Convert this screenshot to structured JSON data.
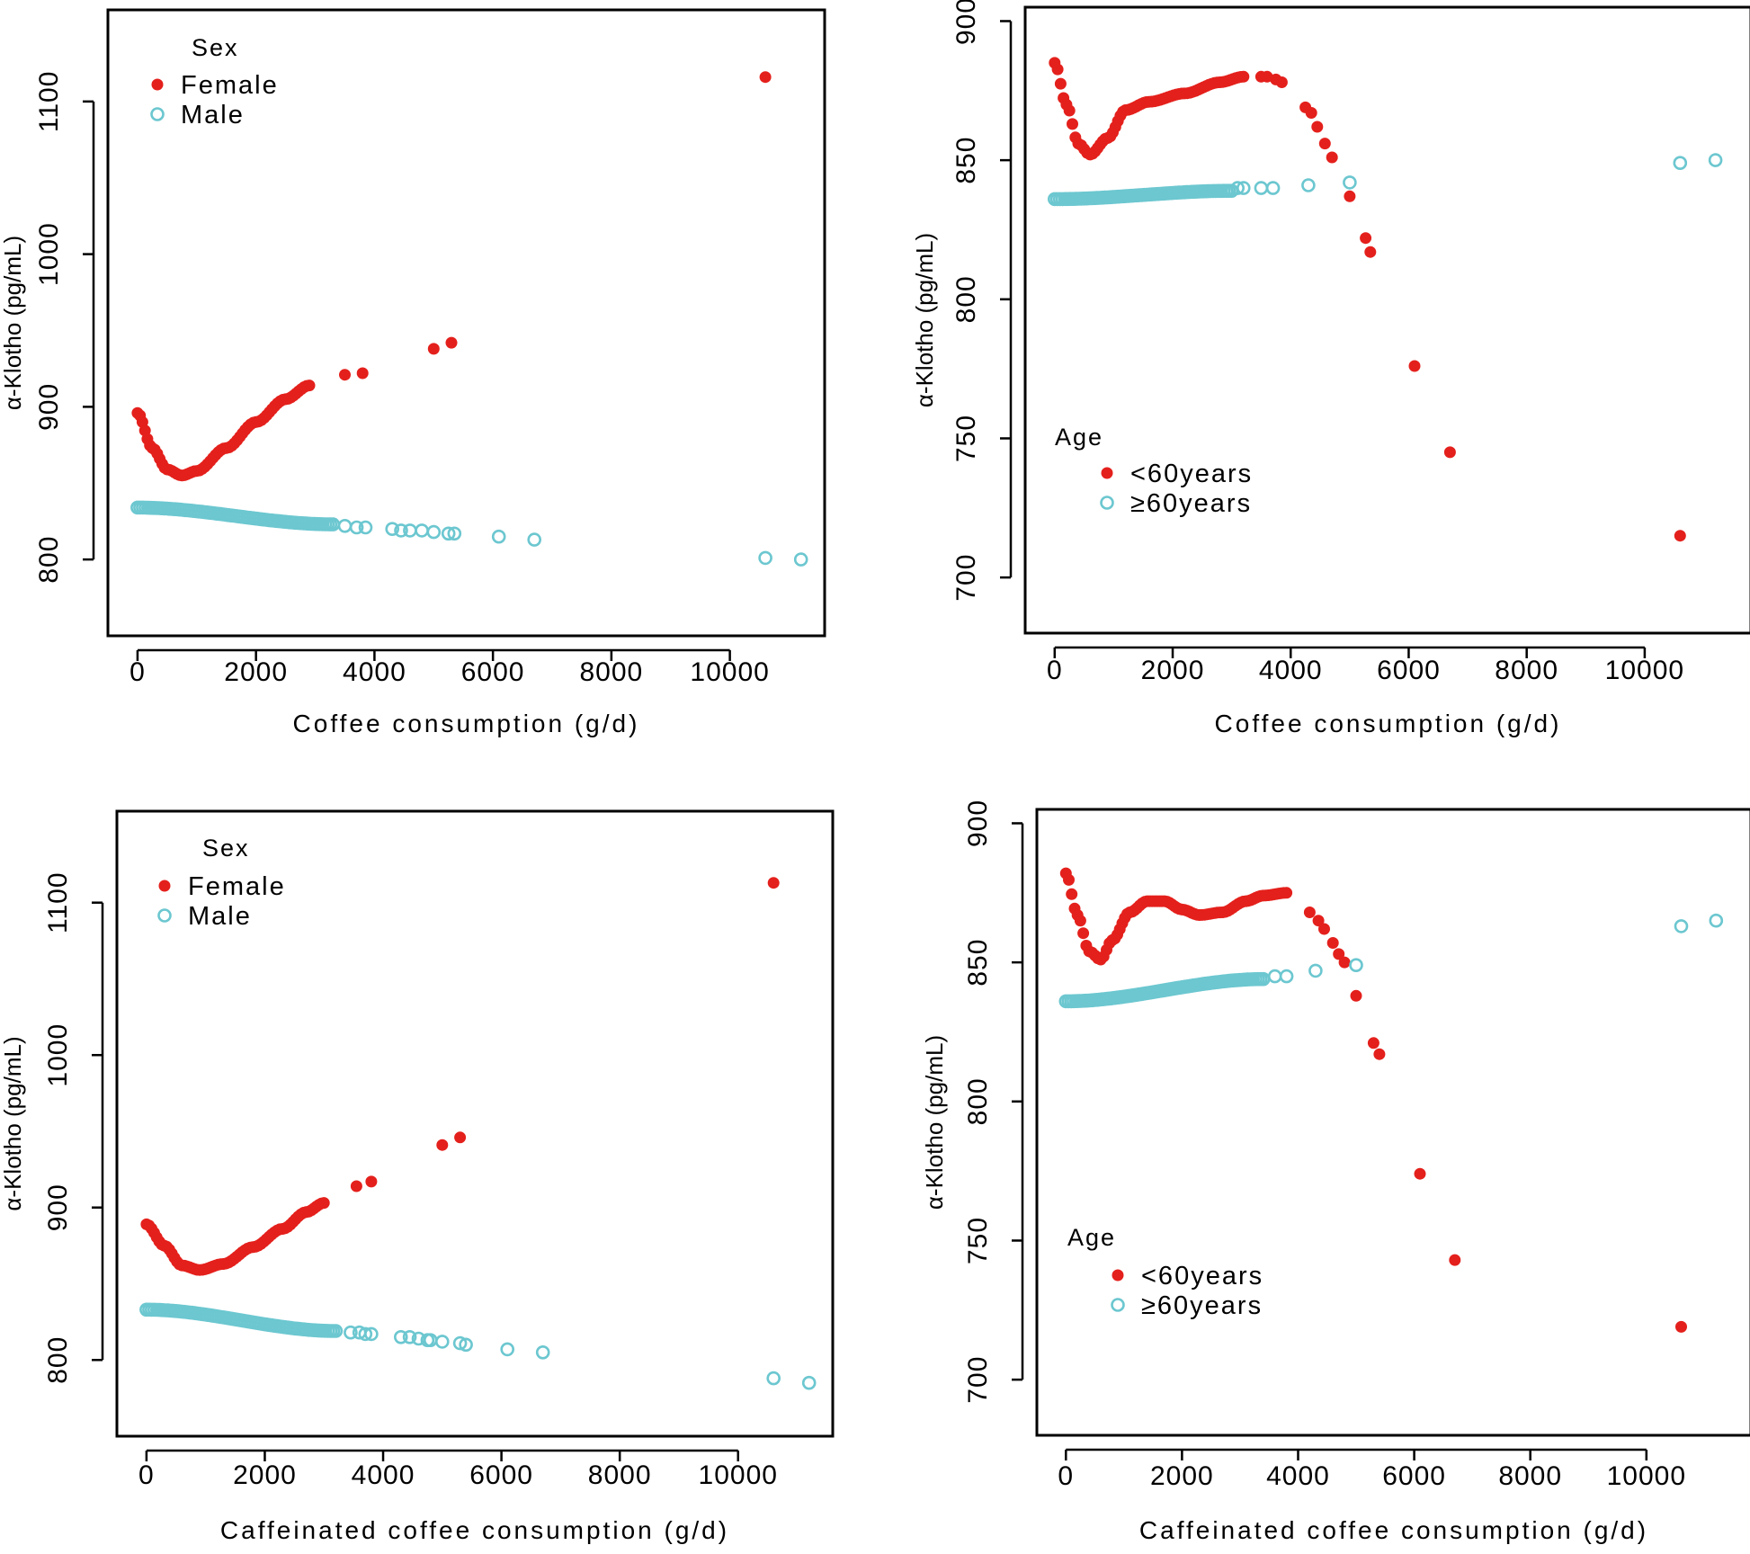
{
  "colors": {
    "female_or_under60": "#E4201C",
    "male_or_over60": "#6CC7D0",
    "axis": "#000000",
    "background": "#FFFFFF"
  },
  "chart_data": [
    {
      "type": "scatter",
      "xlabel": "Coffee consumption (g/d)",
      "ylabel": "α-Klotho (pg/mL)",
      "xlim": [
        -500,
        11600
      ],
      "ylim": [
        750,
        1160
      ],
      "xticks": [
        0,
        2000,
        4000,
        6000,
        8000,
        10000
      ],
      "yticks": [
        800,
        900,
        1000,
        1100
      ],
      "grid": false,
      "legend_title": "Sex",
      "legend_position": "top-left",
      "series": [
        {
          "name": "Female",
          "marker": "filled",
          "curve": [
            [
              0,
              896
            ],
            [
              250,
              873
            ],
            [
              500,
              859
            ],
            [
              750,
              855
            ],
            [
              1000,
              858
            ],
            [
              1500,
              873
            ],
            [
              2000,
              890
            ],
            [
              2500,
              905
            ],
            [
              2900,
              914
            ]
          ],
          "points": [
            [
              3500,
              921
            ],
            [
              3800,
              922
            ],
            [
              5000,
              938
            ],
            [
              5300,
              942
            ],
            [
              10600,
              1116
            ]
          ]
        },
        {
          "name": "Male",
          "marker": "open",
          "curve": [
            [
              0,
              834
            ],
            [
              3300,
              823
            ]
          ],
          "points": [
            [
              3500,
              822
            ],
            [
              3700,
              821
            ],
            [
              3850,
              821
            ],
            [
              4300,
              820
            ],
            [
              4450,
              819
            ],
            [
              4600,
              819
            ],
            [
              4800,
              819
            ],
            [
              5000,
              818
            ],
            [
              5250,
              817
            ],
            [
              5350,
              817
            ],
            [
              6100,
              815
            ],
            [
              6700,
              813
            ],
            [
              10600,
              801
            ],
            [
              11200,
              800
            ]
          ]
        }
      ]
    },
    {
      "type": "scatter",
      "xlabel": "Coffee consumption (g/d)",
      "ylabel": "α-Klotho (pg/mL)",
      "xlim": [
        -500,
        11800
      ],
      "ylim": [
        680,
        905
      ],
      "xticks": [
        0,
        2000,
        4000,
        6000,
        8000,
        10000
      ],
      "yticks": [
        700,
        750,
        800,
        850,
        900
      ],
      "grid": false,
      "legend_title": "Age",
      "legend_position": "bottom-left",
      "series": [
        {
          "name": "<60years",
          "marker": "filled",
          "curve": [
            [
              0,
              885
            ],
            [
              200,
              870
            ],
            [
              400,
              856
            ],
            [
              600,
              852
            ],
            [
              900,
              858
            ],
            [
              1200,
              868
            ],
            [
              1600,
              871
            ],
            [
              2200,
              874
            ],
            [
              2800,
              878
            ],
            [
              3200,
              880
            ]
          ],
          "points": [
            [
              3500,
              880
            ],
            [
              3600,
              880
            ],
            [
              3750,
              879
            ],
            [
              3850,
              878
            ],
            [
              4250,
              869
            ],
            [
              4350,
              867
            ],
            [
              4450,
              862
            ],
            [
              4580,
              856
            ],
            [
              4700,
              851
            ],
            [
              5000,
              837
            ],
            [
              5270,
              822
            ],
            [
              5350,
              817
            ],
            [
              6100,
              776
            ],
            [
              6700,
              745
            ],
            [
              10600,
              715
            ]
          ]
        },
        {
          "name": "≥60years",
          "marker": "open",
          "curve": [
            [
              0,
              836
            ],
            [
              3000,
              839
            ]
          ],
          "points": [
            [
              3100,
              840
            ],
            [
              3200,
              840
            ],
            [
              3500,
              840
            ],
            [
              3700,
              840
            ],
            [
              4300,
              841
            ],
            [
              5000,
              842
            ],
            [
              10600,
              849
            ],
            [
              11200,
              850
            ]
          ]
        }
      ]
    },
    {
      "type": "scatter",
      "xlabel": "Caffeinated coffee consumption (g/d)",
      "ylabel": "α-Klotho (pg/mL)",
      "xlim": [
        -500,
        11600
      ],
      "ylim": [
        750,
        1160
      ],
      "xticks": [
        0,
        2000,
        4000,
        6000,
        8000,
        10000
      ],
      "yticks": [
        800,
        900,
        1000,
        1100
      ],
      "grid": false,
      "legend_title": "Sex",
      "legend_position": "top-left",
      "series": [
        {
          "name": "Female",
          "marker": "filled",
          "curve": [
            [
              0,
              889
            ],
            [
              300,
              875
            ],
            [
              600,
              862
            ],
            [
              900,
              859
            ],
            [
              1300,
              863
            ],
            [
              1800,
              874
            ],
            [
              2300,
              886
            ],
            [
              2700,
              897
            ],
            [
              3000,
              903
            ]
          ],
          "points": [
            [
              3550,
              914
            ],
            [
              3800,
              917
            ],
            [
              5000,
              941
            ],
            [
              5300,
              946
            ],
            [
              10600,
              1113
            ]
          ]
        },
        {
          "name": "Male",
          "marker": "open",
          "curve": [
            [
              0,
              833
            ],
            [
              3200,
              819
            ]
          ],
          "points": [
            [
              3450,
              818
            ],
            [
              3600,
              818
            ],
            [
              3700,
              817
            ],
            [
              3800,
              817
            ],
            [
              4300,
              815
            ],
            [
              4450,
              815
            ],
            [
              4600,
              814
            ],
            [
              4750,
              813
            ],
            [
              4800,
              813
            ],
            [
              5000,
              812
            ],
            [
              5300,
              811
            ],
            [
              5400,
              810
            ],
            [
              6100,
              807
            ],
            [
              6700,
              805
            ],
            [
              10600,
              788
            ],
            [
              11200,
              785
            ]
          ]
        }
      ]
    },
    {
      "type": "scatter",
      "xlabel": "Caffeinated coffee consumption (g/d)",
      "ylabel": "α-Klotho (pg/mL)",
      "xlim": [
        -500,
        11800
      ],
      "ylim": [
        680,
        905
      ],
      "xticks": [
        0,
        2000,
        4000,
        6000,
        8000,
        10000
      ],
      "yticks": [
        700,
        750,
        800,
        850,
        900
      ],
      "grid": false,
      "legend_title": "Age",
      "legend_position": "bottom-left",
      "series": [
        {
          "name": "<60years",
          "marker": "filled",
          "curve": [
            [
              0,
              882
            ],
            [
              200,
              867
            ],
            [
              400,
              854
            ],
            [
              600,
              851
            ],
            [
              800,
              858
            ],
            [
              1100,
              868
            ],
            [
              1400,
              872
            ],
            [
              1700,
              872
            ],
            [
              2000,
              869
            ],
            [
              2300,
              867
            ],
            [
              2700,
              868
            ],
            [
              3100,
              872
            ],
            [
              3400,
              874
            ],
            [
              3800,
              875
            ]
          ],
          "points": [
            [
              4200,
              868
            ],
            [
              4350,
              865
            ],
            [
              4450,
              862
            ],
            [
              4600,
              857
            ],
            [
              4700,
              853
            ],
            [
              4800,
              850
            ],
            [
              5000,
              838
            ],
            [
              5300,
              821
            ],
            [
              5400,
              817
            ],
            [
              6100,
              774
            ],
            [
              6700,
              743
            ],
            [
              10600,
              719
            ]
          ]
        },
        {
          "name": "≥60years",
          "marker": "open",
          "curve": [
            [
              0,
              836
            ],
            [
              3400,
              844
            ]
          ],
          "points": [
            [
              3600,
              845
            ],
            [
              3800,
              845
            ],
            [
              4300,
              847
            ],
            [
              5000,
              849
            ],
            [
              10600,
              863
            ],
            [
              11200,
              865
            ]
          ]
        }
      ]
    }
  ]
}
